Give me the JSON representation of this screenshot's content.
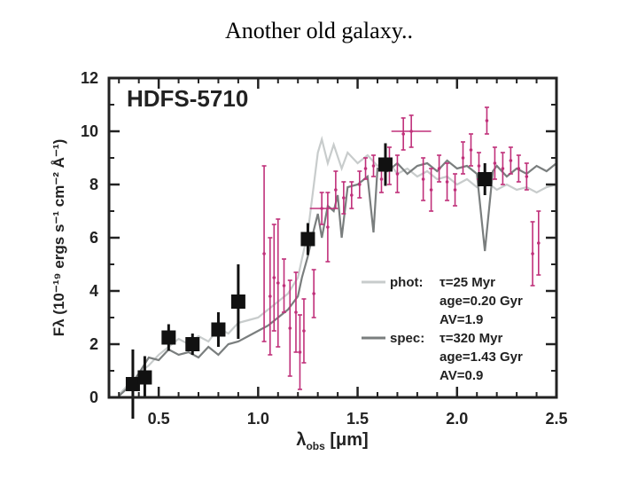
{
  "slide": {
    "title": "Another old galaxy.."
  },
  "chart_data": {
    "type": "scatter",
    "title": "HDFS-5710",
    "xlabel": "λobs [μm]",
    "ylabel": "Fλ (10⁻¹⁹ ergs s⁻¹ cm⁻² Å⁻¹)",
    "xlim": [
      0.25,
      2.5
    ],
    "ylim": [
      0,
      12
    ],
    "x_ticks": [
      "0.5",
      "1.0",
      "1.5",
      "2.0",
      "2.5"
    ],
    "y_ticks": [
      "0",
      "2",
      "4",
      "6",
      "8",
      "10",
      "12"
    ],
    "grid": false,
    "legend_position": "bottom-right",
    "colors": {
      "photometry": "#111111",
      "spectrum": "#c0307a",
      "phot_model": "#c8cccc",
      "spec_model": "#7a7e7e"
    },
    "legend": [
      {
        "name": "phot:",
        "lines": [
          "τ=25 Myr",
          "age=0.20 Gyr",
          "AV=1.9"
        ],
        "color": "#c8cccc"
      },
      {
        "name": "spec:",
        "lines": [
          "τ=320 Myr",
          "age=1.43 Gyr",
          "AV=0.9"
        ],
        "color": "#7a7e7e"
      }
    ],
    "photometry": [
      {
        "x": 0.37,
        "y": 0.5,
        "yerr": 1.3
      },
      {
        "x": 0.43,
        "y": 0.75,
        "yerr": 0.8
      },
      {
        "x": 0.55,
        "y": 2.25,
        "yerr": 0.5
      },
      {
        "x": 0.67,
        "y": 2.0,
        "yerr": 0.4
      },
      {
        "x": 0.8,
        "y": 2.55,
        "yerr": 0.65
      },
      {
        "x": 0.9,
        "y": 3.6,
        "yerr": 1.4
      },
      {
        "x": 1.25,
        "y": 5.95,
        "yerr": 0.6
      },
      {
        "x": 1.64,
        "y": 8.75,
        "yerr": 0.8
      },
      {
        "x": 2.14,
        "y": 8.2,
        "yerr": 0.6
      }
    ],
    "spectrum": [
      {
        "x": 1.03,
        "y": 5.4,
        "yerr": 3.3
      },
      {
        "x": 1.06,
        "y": 3.8,
        "yerr": 2.2
      },
      {
        "x": 1.08,
        "y": 4.5,
        "yerr": 2.0
      },
      {
        "x": 1.1,
        "y": 4.3,
        "yerr": 2.4
      },
      {
        "x": 1.13,
        "y": 4.2,
        "yerr": 1.0
      },
      {
        "x": 1.16,
        "y": 2.6,
        "yerr": 1.8
      },
      {
        "x": 1.19,
        "y": 3.2,
        "yerr": 1.5
      },
      {
        "x": 1.21,
        "y": 1.7,
        "yerr": 1.4
      },
      {
        "x": 1.23,
        "y": 2.5,
        "yerr": 1.2
      },
      {
        "x": 1.28,
        "y": 3.9,
        "yerr": 0.9
      },
      {
        "x": 1.32,
        "y": 7.1,
        "yerr": 0.6,
        "xerr": 0.06
      },
      {
        "x": 1.35,
        "y": 6.4,
        "yerr": 1.3
      },
      {
        "x": 1.39,
        "y": 7.8,
        "yerr": 0.7
      },
      {
        "x": 1.43,
        "y": 7.5,
        "yerr": 0.6
      },
      {
        "x": 1.47,
        "y": 7.6,
        "yerr": 0.5
      },
      {
        "x": 1.51,
        "y": 8.0,
        "yerr": 0.5
      },
      {
        "x": 1.54,
        "y": 8.6,
        "yerr": 0.4
      },
      {
        "x": 1.58,
        "y": 8.7,
        "yerr": 0.4
      },
      {
        "x": 1.62,
        "y": 8.2,
        "yerr": 0.5
      },
      {
        "x": 1.66,
        "y": 8.7,
        "yerr": 0.7
      },
      {
        "x": 1.7,
        "y": 8.4,
        "yerr": 0.7
      },
      {
        "x": 1.73,
        "y": 9.9,
        "yerr": 0.6
      },
      {
        "x": 1.77,
        "y": 10.0,
        "yerr": 0.6,
        "xerr": 0.1
      },
      {
        "x": 1.83,
        "y": 8.2,
        "yerr": 0.8
      },
      {
        "x": 1.87,
        "y": 7.8,
        "yerr": 0.8
      },
      {
        "x": 1.91,
        "y": 8.6,
        "yerr": 0.5
      },
      {
        "x": 1.95,
        "y": 8.1,
        "yerr": 0.7
      },
      {
        "x": 1.99,
        "y": 7.8,
        "yerr": 0.6
      },
      {
        "x": 2.03,
        "y": 9.0,
        "yerr": 0.6
      },
      {
        "x": 2.07,
        "y": 9.3,
        "yerr": 0.6
      },
      {
        "x": 2.11,
        "y": 8.7,
        "yerr": 0.5
      },
      {
        "x": 2.15,
        "y": 10.4,
        "yerr": 0.5
      },
      {
        "x": 2.19,
        "y": 8.8,
        "yerr": 0.6
      },
      {
        "x": 2.23,
        "y": 8.6,
        "yerr": 0.6
      },
      {
        "x": 2.27,
        "y": 8.9,
        "yerr": 0.5
      },
      {
        "x": 2.31,
        "y": 8.6,
        "yerr": 0.5
      },
      {
        "x": 2.35,
        "y": 8.3,
        "yerr": 0.5
      },
      {
        "x": 2.38,
        "y": 5.4,
        "yerr": 1.2
      },
      {
        "x": 2.41,
        "y": 5.8,
        "yerr": 1.2
      }
    ],
    "phot_model": [
      [
        0.3,
        0.1
      ],
      [
        0.35,
        0.5
      ],
      [
        0.38,
        0.3
      ],
      [
        0.4,
        0.9
      ],
      [
        0.45,
        1.2
      ],
      [
        0.5,
        1.6
      ],
      [
        0.55,
        1.9
      ],
      [
        0.6,
        2.2
      ],
      [
        0.65,
        2.0
      ],
      [
        0.7,
        2.3
      ],
      [
        0.75,
        2.1
      ],
      [
        0.8,
        2.6
      ],
      [
        0.85,
        2.4
      ],
      [
        0.9,
        2.8
      ],
      [
        0.95,
        2.9
      ],
      [
        1.0,
        3.0
      ],
      [
        1.05,
        3.3
      ],
      [
        1.1,
        3.6
      ],
      [
        1.15,
        3.9
      ],
      [
        1.2,
        4.5
      ],
      [
        1.22,
        5.2
      ],
      [
        1.25,
        6.2
      ],
      [
        1.28,
        8.0
      ],
      [
        1.3,
        9.2
      ],
      [
        1.32,
        9.7
      ],
      [
        1.35,
        8.8
      ],
      [
        1.38,
        9.5
      ],
      [
        1.42,
        8.6
      ],
      [
        1.45,
        9.2
      ],
      [
        1.5,
        8.8
      ],
      [
        1.55,
        9.1
      ],
      [
        1.6,
        8.7
      ],
      [
        1.65,
        8.9
      ],
      [
        1.7,
        8.4
      ],
      [
        1.75,
        8.6
      ],
      [
        1.8,
        8.3
      ],
      [
        1.85,
        8.5
      ],
      [
        1.9,
        8.2
      ],
      [
        1.95,
        8.3
      ],
      [
        2.0,
        8.0
      ],
      [
        2.05,
        8.2
      ],
      [
        2.1,
        7.9
      ],
      [
        2.15,
        8.1
      ],
      [
        2.2,
        7.8
      ],
      [
        2.25,
        8.0
      ],
      [
        2.3,
        7.8
      ],
      [
        2.35,
        7.9
      ],
      [
        2.4,
        7.7
      ],
      [
        2.45,
        7.9
      ],
      [
        2.5,
        8.0
      ]
    ],
    "spec_model": [
      [
        0.3,
        0.05
      ],
      [
        0.35,
        0.4
      ],
      [
        0.4,
        0.9
      ],
      [
        0.45,
        1.5
      ],
      [
        0.5,
        1.4
      ],
      [
        0.55,
        1.8
      ],
      [
        0.6,
        1.6
      ],
      [
        0.65,
        1.7
      ],
      [
        0.7,
        1.5
      ],
      [
        0.75,
        1.9
      ],
      [
        0.8,
        1.6
      ],
      [
        0.85,
        2.0
      ],
      [
        0.9,
        2.1
      ],
      [
        0.95,
        2.3
      ],
      [
        1.0,
        2.5
      ],
      [
        1.05,
        2.7
      ],
      [
        1.1,
        3.0
      ],
      [
        1.15,
        3.3
      ],
      [
        1.2,
        3.8
      ],
      [
        1.22,
        4.5
      ],
      [
        1.25,
        5.3
      ],
      [
        1.28,
        6.3
      ],
      [
        1.3,
        6.9
      ],
      [
        1.32,
        6.0
      ],
      [
        1.35,
        7.2
      ],
      [
        1.38,
        7.0
      ],
      [
        1.4,
        7.6
      ],
      [
        1.42,
        6.0
      ],
      [
        1.45,
        7.9
      ],
      [
        1.5,
        8.0
      ],
      [
        1.55,
        8.3
      ],
      [
        1.58,
        6.2
      ],
      [
        1.6,
        8.6
      ],
      [
        1.65,
        8.5
      ],
      [
        1.7,
        8.8
      ],
      [
        1.75,
        8.4
      ],
      [
        1.8,
        8.7
      ],
      [
        1.85,
        8.8
      ],
      [
        1.9,
        8.5
      ],
      [
        1.95,
        8.9
      ],
      [
        2.0,
        8.6
      ],
      [
        2.05,
        8.7
      ],
      [
        2.1,
        8.4
      ],
      [
        2.14,
        5.5
      ],
      [
        2.18,
        8.5
      ],
      [
        2.2,
        8.7
      ],
      [
        2.25,
        8.3
      ],
      [
        2.3,
        8.6
      ],
      [
        2.35,
        8.4
      ],
      [
        2.4,
        8.7
      ],
      [
        2.45,
        8.5
      ],
      [
        2.5,
        8.8
      ]
    ]
  }
}
